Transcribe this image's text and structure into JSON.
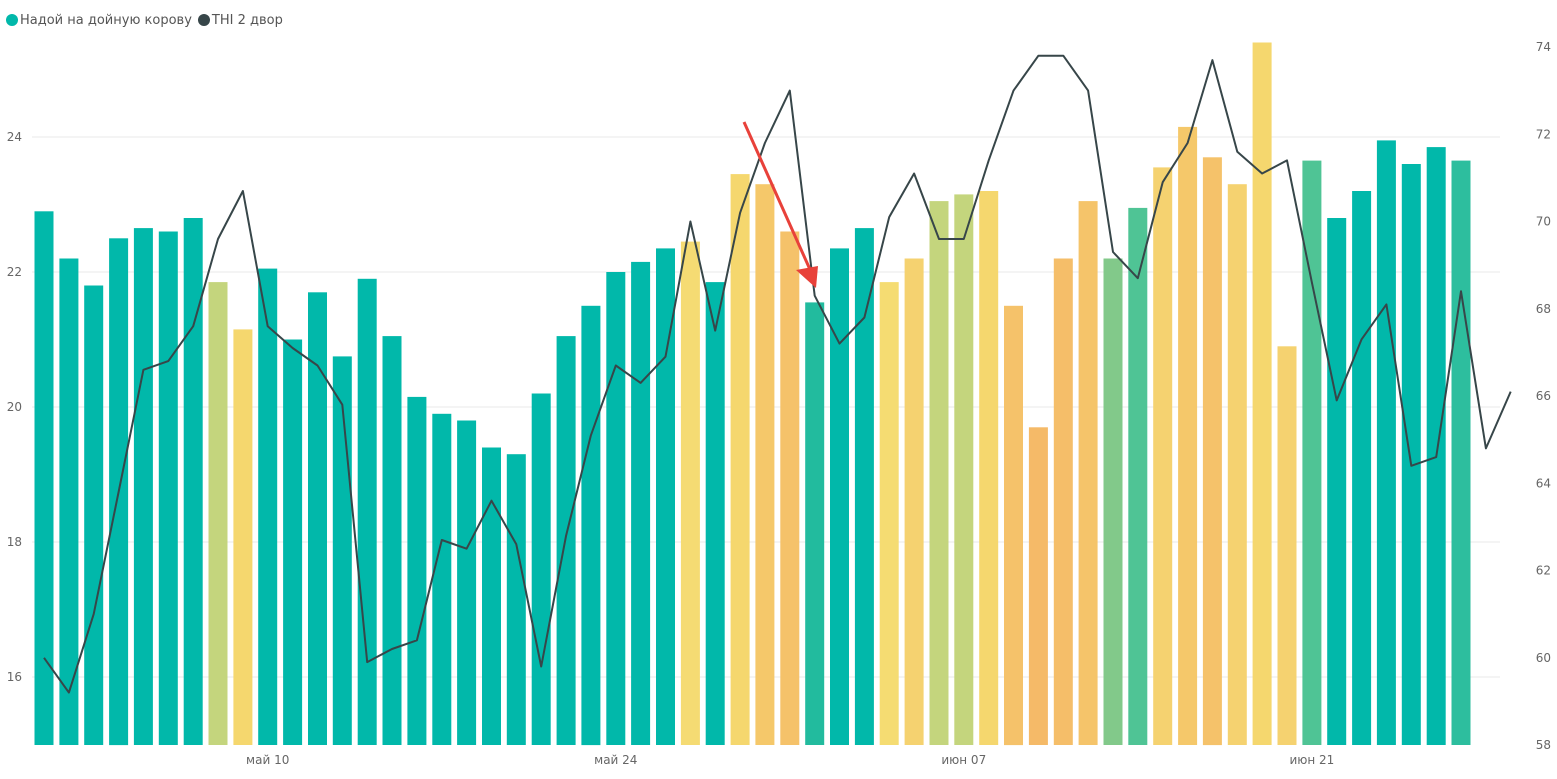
{
  "legend": {
    "series": [
      {
        "label": "Надой на дойную корову",
        "color": "#01b8aa"
      },
      {
        "label": "THI 2 двор",
        "color": "#374649"
      }
    ]
  },
  "chart_data": {
    "type": "bar",
    "title": "",
    "xlabel": "",
    "ylabel": "",
    "x_tick_labels": [
      {
        "label": "май 10",
        "index": 9
      },
      {
        "label": "май 24",
        "index": 23
      },
      {
        "label": "июн 07",
        "index": 37
      },
      {
        "label": "июн 21",
        "index": 51
      }
    ],
    "y_left": {
      "ticks": [
        16,
        18,
        20,
        22,
        24
      ],
      "ylim": [
        15,
        25.5
      ]
    },
    "y_right": {
      "ticks": [
        58,
        60,
        62,
        64,
        66,
        68,
        70,
        72,
        74
      ],
      "ylim": [
        58,
        74.2
      ]
    },
    "series": [
      {
        "name": "Надой на дойную корову",
        "type": "bar",
        "axis": "left",
        "color": "#01b8aa",
        "values": [
          22.9,
          22.2,
          21.8,
          22.5,
          22.65,
          22.6,
          22.8,
          21.85,
          21.15,
          22.05,
          21.0,
          21.7,
          20.75,
          21.9,
          21.05,
          20.15,
          19.9,
          19.8,
          19.4,
          19.3,
          20.2,
          21.05,
          21.5,
          22.0,
          22.15,
          22.35,
          22.45,
          21.85,
          23.45,
          23.3,
          22.6,
          21.55,
          22.35,
          22.65,
          21.85,
          22.2,
          23.05,
          23.15,
          23.2,
          21.5,
          19.7,
          22.2,
          23.05,
          22.2,
          22.95,
          23.55,
          24.15,
          23.7,
          23.3,
          25.4,
          20.9,
          23.65,
          22.8,
          23.2,
          23.95,
          23.6,
          23.85,
          23.65
        ],
        "bar_colors": [
          "#01b8aa",
          "#01b8aa",
          "#01b8aa",
          "#01b8aa",
          "#01b8aa",
          "#01b8aa",
          "#01b8aa",
          "#c4d57d",
          "#f5d76e",
          "#01b8aa",
          "#01b8aa",
          "#01b8aa",
          "#01b8aa",
          "#01b8aa",
          "#01b8aa",
          "#01b8aa",
          "#01b8aa",
          "#01b8aa",
          "#01b8aa",
          "#01b8aa",
          "#01b8aa",
          "#01b8aa",
          "#01b8aa",
          "#01b8aa",
          "#01b8aa",
          "#01b8aa",
          "#f5db73",
          "#01b8aa",
          "#f5d76e",
          "#f5c86a",
          "#f5c26a",
          "#22bb9e",
          "#01b8aa",
          "#01b8aa",
          "#f5dc72",
          "#f5d270",
          "#c4d57d",
          "#c4d57d",
          "#f5d76e",
          "#f5c26a",
          "#f5ba68",
          "#f5be69",
          "#f5c46a",
          "#82c98a",
          "#4fc495",
          "#f5d270",
          "#f5c86a",
          "#f5c26a",
          "#f5d270",
          "#f5d76e",
          "#f5d270",
          "#4fc495",
          "#01b8aa",
          "#01b8aa",
          "#01b8aa",
          "#01b8aa",
          "#01b8aa",
          "#2dbe9e"
        ]
      },
      {
        "name": "THI 2 двор",
        "type": "line",
        "axis": "right",
        "color": "#374649",
        "values": [
          60.0,
          59.2,
          61.0,
          63.8,
          66.6,
          66.8,
          67.6,
          69.6,
          70.7,
          67.6,
          67.1,
          66.7,
          65.8,
          59.9,
          60.2,
          60.4,
          62.7,
          62.5,
          63.6,
          62.6,
          59.8,
          62.8,
          65.1,
          66.7,
          66.3,
          66.9,
          70.0,
          67.5,
          70.2,
          71.8,
          73.0,
          68.3,
          67.2,
          67.8,
          70.1,
          71.1,
          69.6,
          69.6,
          71.4,
          73.0,
          73.8,
          73.8,
          73.0,
          69.3,
          68.7,
          70.9,
          71.8,
          73.7,
          71.6,
          71.1,
          71.4,
          68.6,
          65.9,
          67.3,
          68.1,
          64.4,
          64.6,
          68.4,
          64.8,
          66.1
        ]
      }
    ],
    "annotations": [
      {
        "type": "arrow",
        "color": "#e8413a"
      }
    ]
  }
}
